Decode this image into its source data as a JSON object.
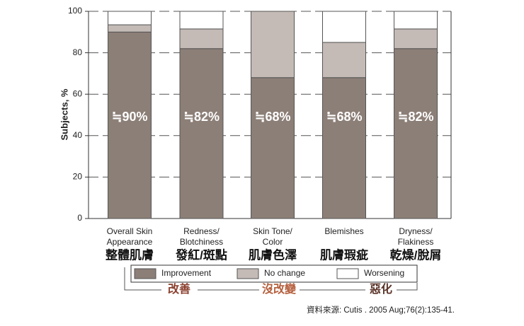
{
  "chart_data": {
    "type": "stacked_bar",
    "y_label": "Subjects, %",
    "categories": [
      [
        "Overall Skin",
        "Appearance"
      ],
      [
        "Redness/",
        "Blotchiness"
      ],
      [
        "Skin Tone/",
        "Color"
      ],
      [
        "Blemishes"
      ],
      [
        "Dryness/",
        "Flakiness"
      ]
    ],
    "categories_zh": [
      "整體肌膚",
      "發紅/斑點",
      "肌膚色澤",
      "肌膚瑕疵",
      "乾燥/脫屑"
    ],
    "series": [
      {
        "name": "Improvement",
        "color": "#8c7f77",
        "values": [
          90,
          82,
          68,
          68,
          82
        ],
        "value_labels": [
          "≒90%",
          "≒82%",
          "≒68%",
          "≒68%",
          "≒82%"
        ]
      },
      {
        "name": "No change",
        "color": "#c4bab6",
        "values": [
          3.5,
          9.5,
          32,
          17,
          9.5
        ]
      },
      {
        "name": "Worsening",
        "color": "#ffffff",
        "values": [
          6.5,
          8.5,
          0,
          15,
          8.5
        ]
      }
    ],
    "ylim": [
      0,
      100
    ],
    "yticks": [
      0,
      20,
      40,
      60,
      80,
      100
    ],
    "grid": true,
    "groups": [
      "改善",
      "沒改變",
      "惡化"
    ],
    "source": "資料來源: Cutis . 2005 Aug;76(2):135-41."
  }
}
